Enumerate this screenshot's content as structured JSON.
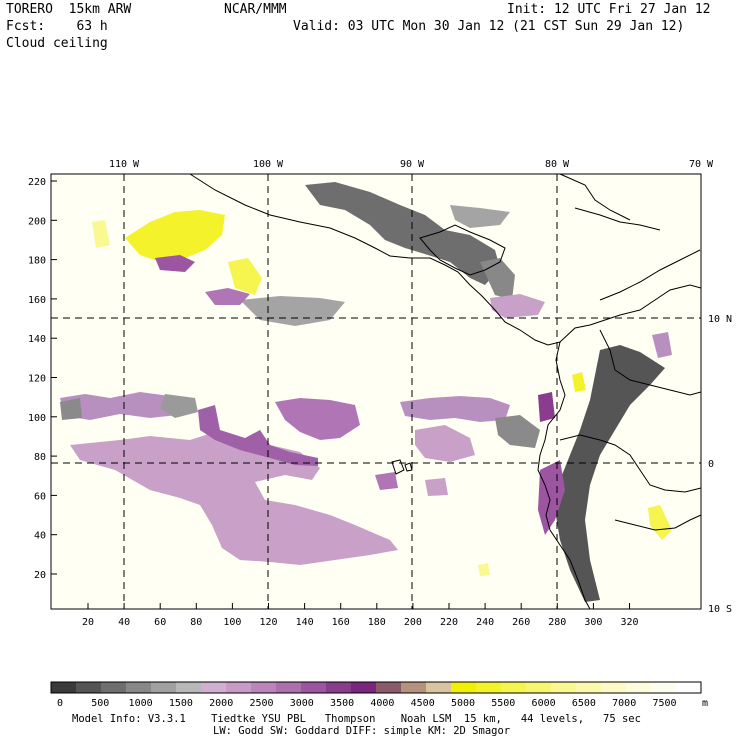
{
  "header": {
    "model": "TORERO  15km ARW",
    "org": "NCAR/MMM",
    "init": "Init: 12 UTC Fri 27 Jan 12",
    "fcst": "Fcst:    63 h",
    "valid": "Valid: 03 UTC Mon 30 Jan 12 (21 CST Sun 29 Jan 12)",
    "field": "Cloud ceiling"
  },
  "map": {
    "lon_labels": [
      "110 W",
      "100 W",
      "90 W",
      "80 W",
      "70 W"
    ],
    "lat_labels": [
      "10 N",
      "0",
      "10 S"
    ],
    "y_ticks": [
      "220",
      "200",
      "180",
      "160",
      "140",
      "120",
      "100",
      "80",
      "60",
      "40",
      "20"
    ],
    "x_ticks": [
      "20",
      "40",
      "60",
      "80",
      "100",
      "120",
      "140",
      "160",
      "180",
      "200",
      "220",
      "240",
      "260",
      "280",
      "300",
      "320"
    ]
  },
  "legend": {
    "labels": [
      "0",
      "500",
      "1000",
      "1500",
      "2000",
      "2500",
      "3000",
      "3500",
      "4000",
      "4500",
      "5000",
      "5500",
      "6000",
      "6500",
      "7000",
      "7500"
    ],
    "unit": "m",
    "colors": [
      "#3a3a3a",
      "#555555",
      "#6e6e6e",
      "#888888",
      "#a0a0a0",
      "#b8b8b8",
      "#d0b0d0",
      "#c89ac8",
      "#bb85bb",
      "#ad70ad",
      "#9c55a0",
      "#8a3d8e",
      "#78267e",
      "#8a5a6a",
      "#b4927e",
      "#d8c4a0",
      "#f0f000",
      "#f4f22a",
      "#f6f44e",
      "#f8f670",
      "#faf890",
      "#fbfaac",
      "#fcfbc6",
      "#fdfcdc",
      "#fefeee",
      "#ffffff"
    ]
  },
  "footer": {
    "line1": "Model Info: V3.3.1    Tiedtke YSU PBL   Thompson    Noah LSM  15 km,   44 levels,   75 sec",
    "line2": "LW: Godd SW: Goddard DIFF: simple KM: 2D Smagor"
  }
}
